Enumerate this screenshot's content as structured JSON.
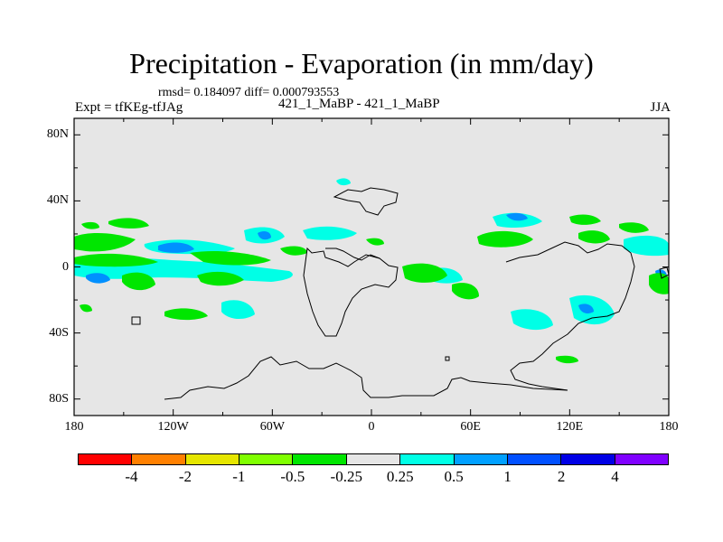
{
  "title": "Precipitation - Evaporation (in mm/day)",
  "stats": "rmsd= 0.184097 diff= 0.000793553",
  "left_label": "Expt = tfKEg-tfJAg",
  "center_label": "421_1_MaBP - 421_1_MaBP",
  "right_label": "JJA",
  "map": {
    "lon_range": [
      -180,
      180
    ],
    "lat_range": [
      -90,
      90
    ],
    "background_color": "#e6e6e6",
    "lat_ticks": [
      {
        "value": 80,
        "label": "80N"
      },
      {
        "value": 40,
        "label": "40N"
      },
      {
        "value": 0,
        "label": "0"
      },
      {
        "value": -40,
        "label": "40S"
      },
      {
        "value": -80,
        "label": "80S"
      }
    ],
    "lon_ticks": [
      {
        "value": -180,
        "label": "180"
      },
      {
        "value": -120,
        "label": "120W"
      },
      {
        "value": -60,
        "label": "60W"
      },
      {
        "value": 0,
        "label": "0"
      },
      {
        "value": 60,
        "label": "60E"
      },
      {
        "value": 120,
        "label": "120E"
      },
      {
        "value": 180,
        "label": "180"
      }
    ]
  },
  "colorbar": {
    "colors": [
      "#ff0000",
      "#ff8000",
      "#e6e600",
      "#80ff00",
      "#00e600",
      "#e6e6e6",
      "#00ffe6",
      "#00a0ff",
      "#0050ff",
      "#0000e6",
      "#8000ff"
    ],
    "labels": [
      "-4",
      "-2",
      "-1",
      "-0.5",
      "-0.25",
      "0.25",
      "0.5",
      "1",
      "2",
      "4"
    ]
  }
}
